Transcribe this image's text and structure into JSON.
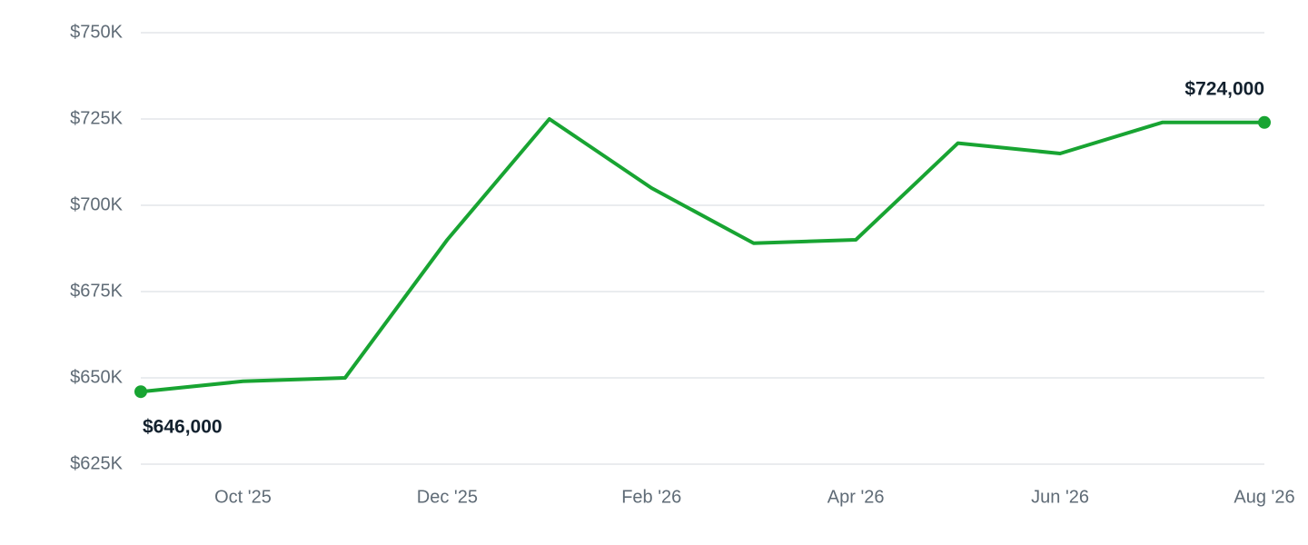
{
  "chart_data": {
    "type": "line",
    "categories": [
      null,
      "Oct '25",
      null,
      "Dec '25",
      null,
      "Feb '26",
      null,
      "Apr '26",
      null,
      "Jun '26",
      null,
      "Aug '26"
    ],
    "series": [
      {
        "color": "#18a432",
        "values": [
          646000,
          649000,
          650000,
          690000,
          725000,
          705000,
          689000,
          690000,
          718000,
          715000,
          724000,
          724000
        ],
        "value_labels": [
          "$646,000",
          null,
          null,
          null,
          null,
          null,
          null,
          null,
          null,
          null,
          null,
          "$724,000"
        ]
      }
    ],
    "ylim": [
      625000,
      750000
    ],
    "yticks": [
      {
        "value": 625000,
        "label": "$625K"
      },
      {
        "value": 650000,
        "label": "$650K"
      },
      {
        "value": 675000,
        "label": "$675K"
      },
      {
        "value": 700000,
        "label": "$700K"
      },
      {
        "value": 725000,
        "label": "$725K"
      },
      {
        "value": 750000,
        "label": "$750K"
      }
    ],
    "grid": true
  }
}
